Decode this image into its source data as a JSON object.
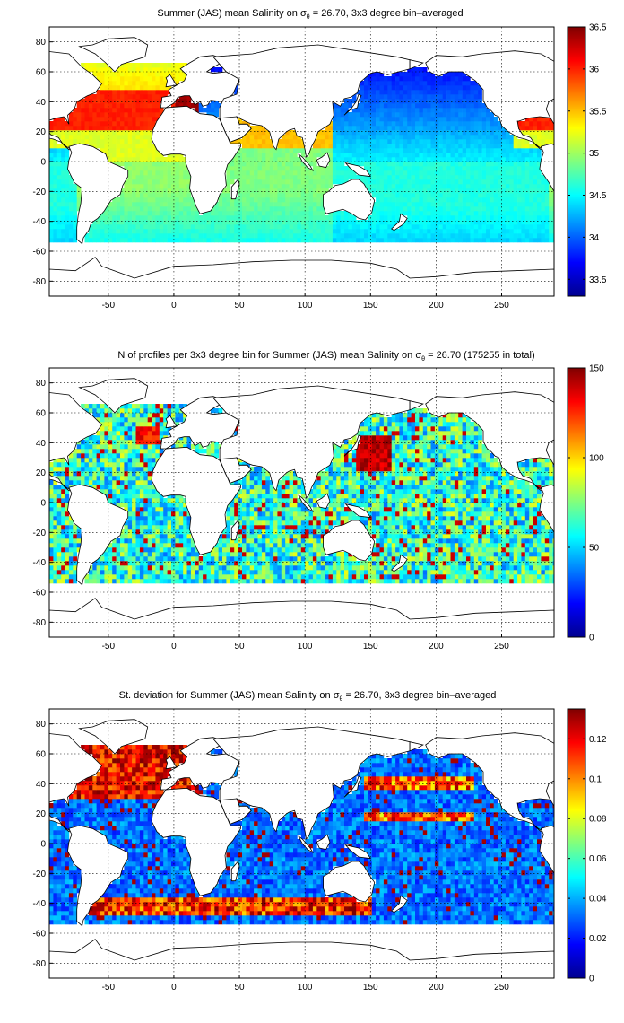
{
  "chart_data": [
    {
      "id": "salinity",
      "type": "heatmap",
      "title_html": "Summer (JAS) mean Salinity on σθ = 26.70, 3x3 degree bin–averaged",
      "title_parts": [
        "Summer (JAS) mean Salinity on ",
        "σ",
        "θ",
        " = 26.70, 3x3 degree bin–averaged"
      ],
      "xlim": [
        -95,
        290
      ],
      "ylim": [
        -90,
        90
      ],
      "xticks": [
        -50,
        0,
        50,
        100,
        150,
        200,
        250
      ],
      "yticks": [
        80,
        60,
        40,
        20,
        0,
        -20,
        -40,
        -60,
        -80
      ],
      "grid": true,
      "colorbar": {
        "min": 33.3,
        "max": 36.5,
        "ticks": [
          33.5,
          34,
          34.5,
          35,
          35.5,
          36,
          36.5
        ],
        "tick_labels": [
          "33.5",
          "34",
          "34.5",
          "35",
          "35.5",
          "36",
          "36.5"
        ]
      },
      "colormap": "jet",
      "bin_size_deg": 3
    },
    {
      "id": "nprofiles",
      "type": "heatmap",
      "title_parts": [
        "N of profiles per 3x3 degree bin for Summer (JAS) mean Salinity on ",
        "σ",
        "θ",
        " = 26.70 (175255 in total)"
      ],
      "total_profiles": 175255,
      "xlim": [
        -95,
        290
      ],
      "ylim": [
        -90,
        90
      ],
      "xticks": [
        -50,
        0,
        50,
        100,
        150,
        200,
        250
      ],
      "yticks": [
        80,
        60,
        40,
        20,
        0,
        -20,
        -40,
        -60,
        -80
      ],
      "grid": true,
      "colorbar": {
        "min": 0,
        "max": 150,
        "ticks": [
          0,
          50,
          100,
          150
        ],
        "tick_labels": [
          "0",
          "50",
          "100",
          "150"
        ]
      },
      "colormap": "jet",
      "bin_size_deg": 3
    },
    {
      "id": "stdev",
      "type": "heatmap",
      "title_parts": [
        "St. deviation for Summer (JAS) mean Salinity on ",
        "σ",
        "θ",
        " = 26.70, 3x3 degree bin–averaged"
      ],
      "xlim": [
        -95,
        290
      ],
      "ylim": [
        -90,
        90
      ],
      "xticks": [
        -50,
        0,
        50,
        100,
        150,
        200,
        250
      ],
      "yticks": [
        80,
        60,
        40,
        20,
        0,
        -20,
        -40,
        -60,
        -80
      ],
      "grid": true,
      "colorbar": {
        "min": 0,
        "max": 0.135,
        "ticks": [
          0,
          0.02,
          0.04,
          0.06,
          0.08,
          0.1,
          0.12
        ],
        "tick_labels": [
          "0",
          "0.02",
          "0.04",
          "0.06",
          "0.08",
          "0.1",
          "0.12"
        ]
      },
      "colormap": "jet",
      "bin_size_deg": 3
    }
  ]
}
